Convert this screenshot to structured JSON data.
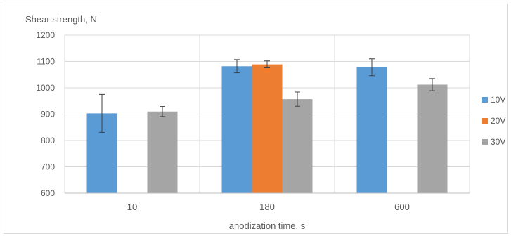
{
  "chart_data": {
    "type": "bar",
    "ylabel": "Shear strength, N",
    "xlabel": "anodization time, s",
    "categories": [
      "10",
      "180",
      "600"
    ],
    "series": [
      {
        "name": "10V",
        "values": [
          903,
          1082,
          1078
        ],
        "errors": [
          72,
          25,
          32
        ]
      },
      {
        "name": "20V",
        "values": [
          null,
          1089,
          null
        ],
        "errors": [
          null,
          13,
          null
        ]
      },
      {
        "name": "30V",
        "values": [
          910,
          957,
          1012
        ],
        "errors": [
          19,
          27,
          23
        ]
      }
    ],
    "ylim": [
      600,
      1200
    ],
    "yticks": [
      600,
      700,
      800,
      900,
      1000,
      1100,
      1200
    ],
    "grid": true,
    "legend_position": "right",
    "colors": {
      "10V": "#5b9bd5",
      "20V": "#ed7d31",
      "30V": "#a5a5a5",
      "grid": "#d9d9d9",
      "axis": "#bfbfbf",
      "error": "#404040"
    }
  }
}
